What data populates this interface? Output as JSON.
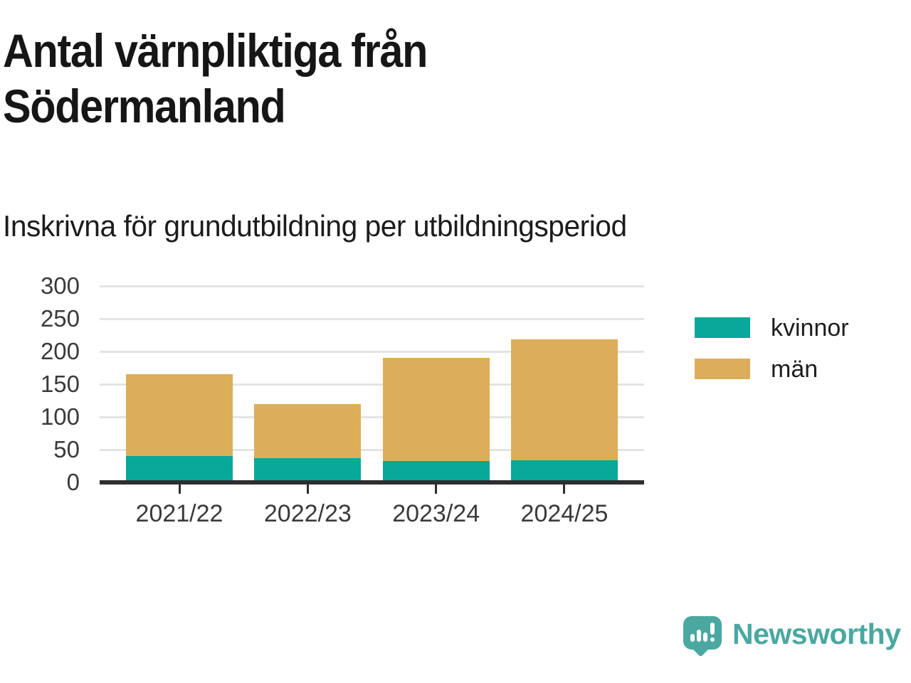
{
  "header": {
    "title_line1": "Antal värnpliktiga från",
    "title_line2": "Södermanland",
    "subtitle": "Inskrivna för grundutbildning per utbildningsperiod"
  },
  "chart_data": {
    "type": "bar",
    "stacked": true,
    "title": "Antal värnpliktiga från Södermanland",
    "subtitle": "Inskrivna för grundutbildning per utbildningsperiod",
    "categories": [
      "2021/22",
      "2022/23",
      "2023/24",
      "2024/25"
    ],
    "series": [
      {
        "name": "kvinnor",
        "color": "#0aa79b",
        "values": [
          40,
          37,
          33,
          34
        ]
      },
      {
        "name": "män",
        "color": "#dcae59",
        "values": [
          125,
          83,
          157,
          184
        ]
      }
    ],
    "stack_totals": [
      165,
      120,
      190,
      218
    ],
    "xlabel": "",
    "ylabel": "",
    "ylim": [
      0,
      300
    ],
    "yticks": [
      0,
      50,
      100,
      150,
      200,
      250,
      300
    ],
    "grid": true,
    "legend_position": "right"
  },
  "footer": {
    "brand": "Newsworthy",
    "brand_color": "#4aa8a1"
  },
  "colors": {
    "background": "#ffffff",
    "axis": "#2e2e2e",
    "gridline": "#e4e4e4",
    "tick_text": "#3a3a3a",
    "title_text": "#161616"
  }
}
